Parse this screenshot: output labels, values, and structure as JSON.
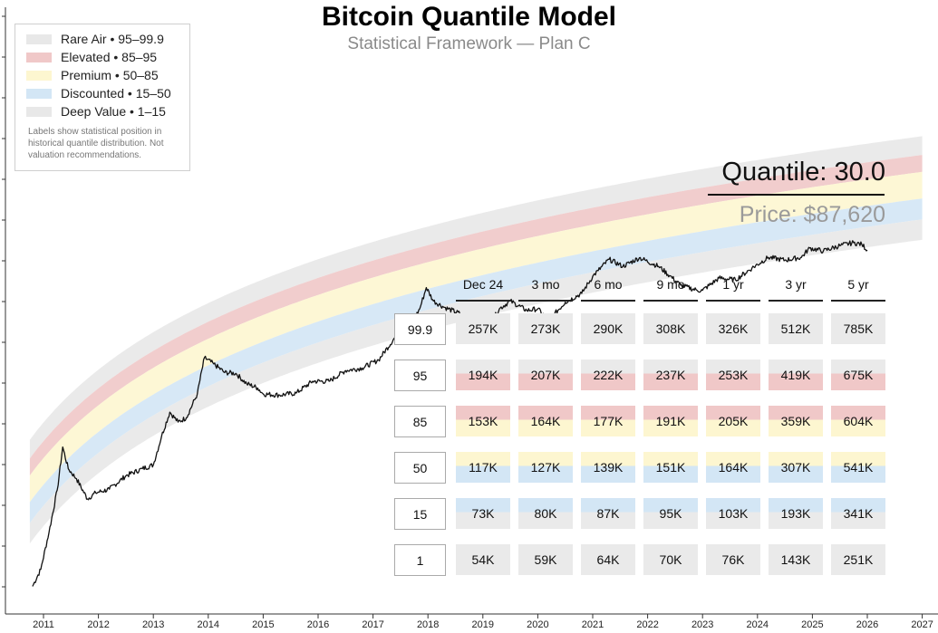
{
  "header": {
    "title": "Bitcoin Quantile Model",
    "subtitle": "Statistical Framework — Plan C"
  },
  "legend": {
    "items": [
      {
        "label": "Rare Air • 95–99.9",
        "color": "#e8e8e8"
      },
      {
        "label": "Elevated • 85–95",
        "color": "#f0c8c8"
      },
      {
        "label": "Premium • 50–85",
        "color": "#fdf6d0"
      },
      {
        "label": "Discounted • 15–50",
        "color": "#d3e6f5"
      },
      {
        "label": "Deep Value • 1–15",
        "color": "#e8e8e8"
      }
    ],
    "note": "Labels show statistical position in historical quantile distribution. Not valuation recommendations."
  },
  "readout": {
    "quantile": "Quantile: 30.0",
    "price": "Price: $87,620"
  },
  "table": {
    "columns": [
      "Dec 24",
      "3 mo",
      "6 mo",
      "9 mo",
      "1 yr",
      "3 yr",
      "5 yr"
    ],
    "rows": [
      {
        "quantile": "99.9",
        "values": [
          "257K",
          "273K",
          "290K",
          "308K",
          "326K",
          "512K",
          "785K"
        ]
      },
      {
        "quantile": "95",
        "values": [
          "194K",
          "207K",
          "222K",
          "237K",
          "253K",
          "419K",
          "675K"
        ]
      },
      {
        "quantile": "85",
        "values": [
          "153K",
          "164K",
          "177K",
          "191K",
          "205K",
          "359K",
          "604K"
        ]
      },
      {
        "quantile": "50",
        "values": [
          "117K",
          "127K",
          "139K",
          "151K",
          "164K",
          "307K",
          "541K"
        ]
      },
      {
        "quantile": "15",
        "values": [
          "73K",
          "80K",
          "87K",
          "95K",
          "103K",
          "193K",
          "341K"
        ]
      },
      {
        "quantile": "1",
        "values": [
          "54K",
          "59K",
          "64K",
          "70K",
          "76K",
          "143K",
          "251K"
        ]
      }
    ]
  },
  "chart_data": {
    "type": "line",
    "title": "Bitcoin Quantile Model",
    "subtitle": "Statistical Framework — Plan C",
    "xlabel": "",
    "ylabel": "",
    "y_scale": "log",
    "xlim": [
      2010.75,
      2027.0
    ],
    "x_ticks": [
      "2011",
      "2012",
      "2013",
      "2014",
      "2015",
      "2016",
      "2017",
      "2018",
      "2019",
      "2020",
      "2021",
      "2022",
      "2023",
      "2024",
      "2025",
      "2026",
      "2027"
    ],
    "bands": [
      {
        "name": "Rare Air",
        "range": "95–99.9",
        "color": "#e8e8e8"
      },
      {
        "name": "Elevated",
        "range": "85–95",
        "color": "#f0c8c8"
      },
      {
        "name": "Premium",
        "range": "50–85",
        "color": "#fdf6d0"
      },
      {
        "name": "Discounted",
        "range": "15–50",
        "color": "#d3e6f5"
      },
      {
        "name": "Deep Value",
        "range": "1–15",
        "color": "#e8e8e8"
      }
    ],
    "series": [
      {
        "x": [
          2010.8,
          2010.95,
          2011.1,
          2011.25,
          2011.35,
          2011.45,
          2011.6,
          2011.8,
          2011.95,
          2012.2,
          2012.5,
          2012.8,
          2013.0,
          2013.15,
          2013.3,
          2013.45,
          2013.6,
          2013.8,
          2013.93,
          2014.1,
          2014.3,
          2014.5,
          2014.7,
          2014.9,
          2015.0,
          2015.3,
          2015.6,
          2015.9,
          2016.2,
          2016.5,
          2016.8,
          2017.1,
          2017.4,
          2017.7,
          2017.85,
          2017.97,
          2018.1,
          2018.3,
          2018.6,
          2018.9,
          2019.1,
          2019.3,
          2019.5,
          2019.8,
          2020.0,
          2020.2,
          2020.5,
          2020.8,
          2021.0,
          2021.1,
          2021.3,
          2021.55,
          2021.85,
          2022.2,
          2022.4,
          2022.6,
          2022.9,
          2023.0,
          2023.3,
          2023.6,
          2023.9,
          2024.2,
          2024.5,
          2024.8,
          2024.95,
          2025.2,
          2025.5,
          2025.75,
          2025.9,
          2026.0
        ],
        "y": [
          0.1,
          0.2,
          0.9,
          5,
          29,
          12,
          8,
          3.5,
          4.5,
          5.2,
          9,
          12,
          14,
          45,
          120,
          80,
          95,
          250,
          1100,
          850,
          600,
          580,
          380,
          320,
          250,
          240,
          260,
          420,
          420,
          650,
          720,
          1000,
          2500,
          4400,
          8000,
          19000,
          11000,
          8500,
          6500,
          3600,
          3800,
          8000,
          11000,
          7500,
          8000,
          5000,
          10500,
          15000,
          30000,
          38000,
          60000,
          45000,
          64000,
          45000,
          31000,
          21000,
          17000,
          17000,
          28000,
          26000,
          42000,
          65000,
          58000,
          65000,
          95000,
          84000,
          105000,
          118000,
          110000,
          87620
        ]
      }
    ]
  }
}
